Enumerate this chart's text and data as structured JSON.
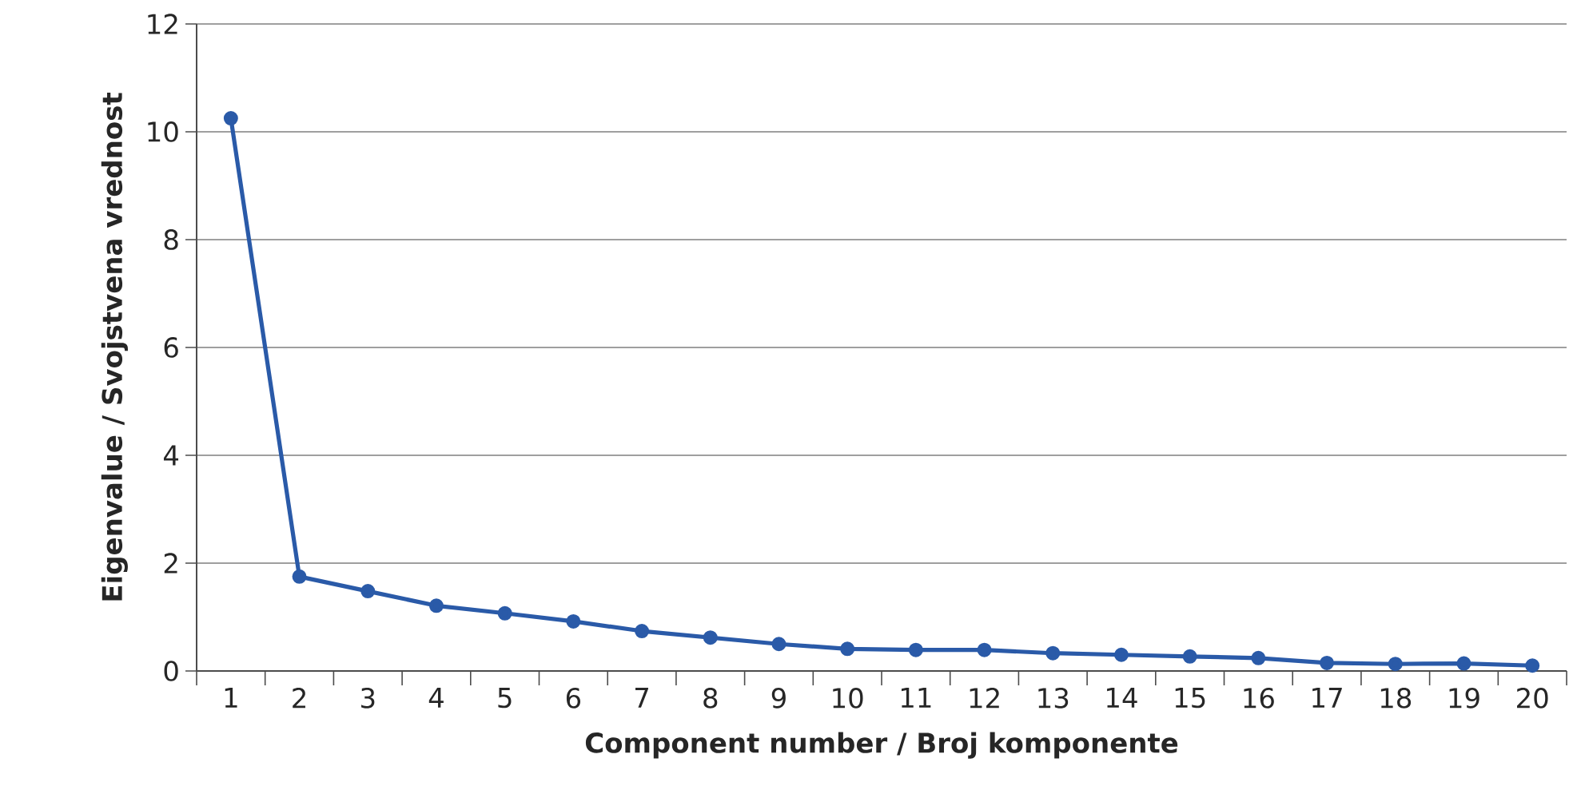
{
  "chart_data": {
    "type": "line",
    "xlabel": "Component number / Broj komponente",
    "ylabel": "Eigenvalue / Svojstvena vrednost",
    "categories": [
      "1",
      "2",
      "3",
      "4",
      "5",
      "6",
      "7",
      "8",
      "9",
      "10",
      "11",
      "12",
      "13",
      "14",
      "15",
      "16",
      "17",
      "18",
      "19",
      "20"
    ],
    "series": [
      {
        "color": "#2a5aa8",
        "values": [
          10.25,
          1.75,
          1.48,
          1.21,
          1.07,
          0.92,
          0.74,
          0.62,
          0.5,
          0.41,
          0.39,
          0.39,
          0.33,
          0.3,
          0.27,
          0.24,
          0.15,
          0.13,
          0.14,
          0.1
        ]
      }
    ],
    "ylim": [
      0,
      12
    ],
    "yticks": [
      0,
      2,
      4,
      6,
      8,
      10,
      12
    ],
    "grid": "y",
    "marker": "circle",
    "line_style": "solid"
  }
}
